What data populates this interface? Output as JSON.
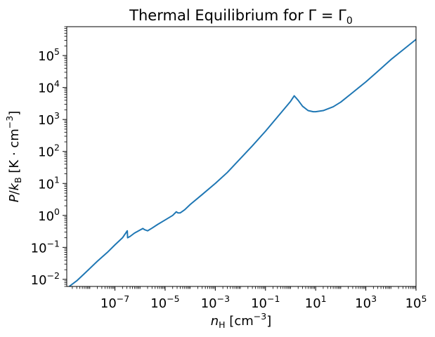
{
  "chart_data": {
    "type": "line",
    "title": "Thermal Equilibrium for Γ = Γ₀",
    "xlabel": "n_H [cm⁻³]",
    "ylabel": "P/k_B [K · cm⁻³]",
    "x_scale": "log",
    "y_scale": "log",
    "xlim": [
      1.2e-09,
      100000
    ],
    "ylim": [
      0.006,
      800000
    ],
    "x_major_ticks": [
      {
        "value": 1e-07,
        "base": "10",
        "exp": "−7"
      },
      {
        "value": 1e-05,
        "base": "10",
        "exp": "−5"
      },
      {
        "value": 0.001,
        "base": "10",
        "exp": "−3"
      },
      {
        "value": 0.1,
        "base": "10",
        "exp": "−1"
      },
      {
        "value": 10,
        "base": "10",
        "exp": "1"
      },
      {
        "value": 1000,
        "base": "10",
        "exp": "3"
      },
      {
        "value": 100000,
        "base": "10",
        "exp": "5"
      }
    ],
    "y_major_ticks": [
      {
        "value": 0.01,
        "base": "10",
        "exp": "−2"
      },
      {
        "value": 0.1,
        "base": "10",
        "exp": "−1"
      },
      {
        "value": 1,
        "base": "10",
        "exp": "0"
      },
      {
        "value": 10,
        "base": "10",
        "exp": "1"
      },
      {
        "value": 100,
        "base": "10",
        "exp": "2"
      },
      {
        "value": 1000,
        "base": "10",
        "exp": "3"
      },
      {
        "value": 10000,
        "base": "10",
        "exp": "4"
      },
      {
        "value": 100000,
        "base": "10",
        "exp": "5"
      }
    ],
    "grid": false,
    "legend": "none",
    "line_color": "#1f77b4",
    "series": [
      {
        "x": [
          1.5e-09,
          3e-09,
          6e-09,
          1e-08,
          2e-08,
          5e-08,
          1e-07,
          2e-07,
          3.1e-07,
          3.2e-07,
          4e-07,
          6e-07,
          1e-06,
          1.3e-06,
          1.5e-06,
          2e-06,
          3e-06,
          5e-06,
          1e-05,
          2e-05,
          2.8e-05,
          3.2e-05,
          4e-05,
          6e-05,
          0.0001,
          0.0003,
          0.001,
          0.003,
          0.01,
          0.03,
          0.1,
          0.3,
          1,
          1.4,
          2,
          3,
          5,
          8,
          10,
          20,
          50,
          100,
          300,
          1000,
          3000,
          10000,
          30000,
          100000,
          200000
        ],
        "y": [
          0.006,
          0.009,
          0.015,
          0.022,
          0.037,
          0.07,
          0.12,
          0.2,
          0.33,
          0.2,
          0.22,
          0.28,
          0.35,
          0.39,
          0.36,
          0.33,
          0.4,
          0.52,
          0.72,
          1.0,
          1.3,
          1.2,
          1.2,
          1.5,
          2.2,
          4.5,
          10,
          22,
          60,
          150,
          430,
          1200,
          3700,
          5500,
          4000,
          2600,
          1900,
          1750,
          1750,
          1900,
          2500,
          3500,
          7000,
          15000,
          32000,
          75000,
          150000,
          320000,
          350000
        ]
      }
    ]
  }
}
